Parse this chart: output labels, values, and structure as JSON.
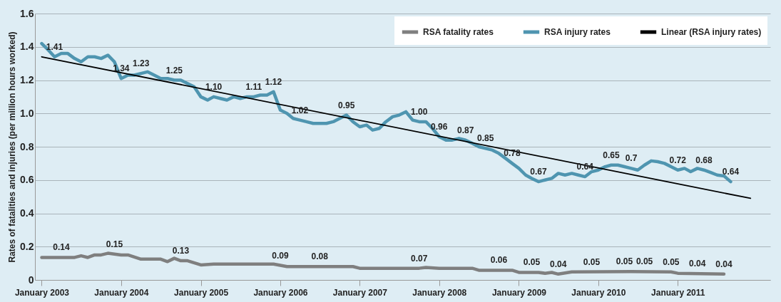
{
  "chart_data": {
    "type": "line",
    "ylabel": "Rates of fatalities and injuries (per million hours worked)",
    "xlim": [
      "2002-12",
      "2012-03"
    ],
    "xticks": [
      {
        "value": "2003-01",
        "label": "January 2003"
      },
      {
        "value": "2004-01",
        "label": "January 2004"
      },
      {
        "value": "2005-01",
        "label": "January 2005"
      },
      {
        "value": "2006-01",
        "label": "January 2006"
      },
      {
        "value": "2007-01",
        "label": "January 2007"
      },
      {
        "value": "2008-01",
        "label": "January 2008"
      },
      {
        "value": "2009-01",
        "label": "January 2009"
      },
      {
        "value": "2010-01",
        "label": "January 2010"
      },
      {
        "value": "2011-01",
        "label": "January 2011"
      }
    ],
    "ylim": [
      0,
      1.6
    ],
    "yticks": [
      0,
      0.2,
      0.4,
      0.6,
      0.8,
      {
        "value": 1,
        "label": "1.0"
      },
      1.2,
      1.4,
      1.6
    ],
    "grid": "y",
    "legend": "top right",
    "marker": "none",
    "line_style": "solid",
    "series": [
      {
        "name": "RSA fatality rates",
        "color": "#7f7f7f",
        "x": [
          "2003-01",
          "2003-06",
          "2003-07",
          "2003-08",
          "2003-09",
          "2003-10",
          "2003-11",
          "2004-01",
          "2004-02",
          "2004-04",
          "2004-07",
          "2004-08",
          "2004-09",
          "2004-10",
          "2004-11",
          "2005-01",
          "2005-03",
          "2005-12",
          "2006-02",
          "2006-12",
          "2007-01",
          "2007-10",
          "2007-11",
          "2008-01",
          "2008-06",
          "2008-07",
          "2008-12",
          "2009-01",
          "2009-04",
          "2009-05",
          "2009-06",
          "2009-07",
          "2009-09",
          "2010-06",
          "2010-12",
          "2011-01",
          "2011-08"
        ],
        "values": [
          0.135,
          0.135,
          0.145,
          0.135,
          0.15,
          0.15,
          0.16,
          0.15,
          0.15,
          0.125,
          0.125,
          0.11,
          0.13,
          0.115,
          0.115,
          0.09,
          0.095,
          0.095,
          0.08,
          0.08,
          0.07,
          0.07,
          0.075,
          0.07,
          0.07,
          0.058,
          0.058,
          0.045,
          0.045,
          0.04,
          0.045,
          0.035,
          0.048,
          0.05,
          0.048,
          0.04,
          0.035
        ]
      },
      {
        "name": "RSA injury rates",
        "color": "#4f95b0",
        "x": [
          "2003-01",
          "2003-02",
          "2003-03",
          "2003-04",
          "2003-05",
          "2003-06",
          "2003-07",
          "2003-08",
          "2003-09",
          "2003-10",
          "2003-11",
          "2003-12",
          "2004-01",
          "2004-02",
          "2004-03",
          "2004-04",
          "2004-05",
          "2004-06",
          "2004-07",
          "2004-08",
          "2004-09",
          "2004-10",
          "2004-11",
          "2004-12",
          "2005-01",
          "2005-02",
          "2005-03",
          "2005-04",
          "2005-05",
          "2005-06",
          "2005-07",
          "2005-08",
          "2005-09",
          "2005-10",
          "2005-11",
          "2005-12",
          "2006-01",
          "2006-02",
          "2006-03",
          "2006-04",
          "2006-05",
          "2006-06",
          "2006-07",
          "2006-08",
          "2006-09",
          "2006-10",
          "2006-11",
          "2006-12",
          "2007-01",
          "2007-02",
          "2007-03",
          "2007-04",
          "2007-05",
          "2007-06",
          "2007-07",
          "2007-08",
          "2007-09",
          "2007-10",
          "2007-11",
          "2007-12",
          "2008-01",
          "2008-02",
          "2008-03",
          "2008-04",
          "2008-05",
          "2008-06",
          "2008-07",
          "2008-08",
          "2008-09",
          "2008-10",
          "2008-11",
          "2008-12",
          "2009-01",
          "2009-02",
          "2009-03",
          "2009-04",
          "2009-05",
          "2009-06",
          "2009-07",
          "2009-08",
          "2009-09",
          "2009-10",
          "2009-11",
          "2009-12",
          "2010-01",
          "2010-02",
          "2010-03",
          "2010-04",
          "2010-05",
          "2010-06",
          "2010-07",
          "2010-08",
          "2010-09",
          "2010-10",
          "2010-11",
          "2010-12",
          "2011-01",
          "2011-02",
          "2011-03",
          "2011-04",
          "2011-05",
          "2011-06",
          "2011-07",
          "2011-08",
          "2011-09"
        ],
        "values": [
          1.42,
          1.38,
          1.34,
          1.36,
          1.36,
          1.33,
          1.31,
          1.34,
          1.34,
          1.33,
          1.35,
          1.31,
          1.21,
          1.23,
          1.23,
          1.24,
          1.25,
          1.23,
          1.21,
          1.21,
          1.2,
          1.2,
          1.18,
          1.16,
          1.1,
          1.08,
          1.1,
          1.09,
          1.08,
          1.1,
          1.09,
          1.1,
          1.1,
          1.11,
          1.11,
          1.13,
          1.02,
          1.0,
          0.97,
          0.96,
          0.95,
          0.94,
          0.94,
          0.94,
          0.95,
          0.97,
          0.99,
          0.95,
          0.92,
          0.93,
          0.9,
          0.91,
          0.95,
          0.98,
          0.99,
          1.01,
          0.96,
          0.95,
          0.95,
          0.91,
          0.86,
          0.84,
          0.84,
          0.85,
          0.84,
          0.82,
          0.8,
          0.79,
          0.78,
          0.76,
          0.73,
          0.7,
          0.67,
          0.63,
          0.61,
          0.59,
          0.6,
          0.61,
          0.64,
          0.63,
          0.64,
          0.63,
          0.62,
          0.65,
          0.66,
          0.68,
          0.69,
          0.69,
          0.68,
          0.67,
          0.66,
          0.69,
          0.715,
          0.71,
          0.7,
          0.68,
          0.66,
          0.67,
          0.65,
          0.67,
          0.66,
          0.645,
          0.63,
          0.625,
          0.59
        ]
      },
      {
        "name": "Linear (RSA injury rates)",
        "type": "line",
        "color": "#000000",
        "x": [
          "2003-01",
          "2011-12"
        ],
        "values": [
          1.34,
          0.49
        ]
      }
    ],
    "annotations": [
      {
        "text": "1.41",
        "x": "2003-03",
        "y": 1.34
      },
      {
        "text": "1.34",
        "x": "2004-01",
        "y": 1.21
      },
      {
        "text": "1.23",
        "x": "2004-04",
        "y": 1.24
      },
      {
        "text": "1.25",
        "x": "2004-09",
        "y": 1.2
      },
      {
        "text": "1.10",
        "x": "2005-03",
        "y": 1.1
      },
      {
        "text": "1.11",
        "x": "2005-09",
        "y": 1.1
      },
      {
        "text": "1.12",
        "x": "2005-12",
        "y": 1.13
      },
      {
        "text": "1.02",
        "x": "2006-04",
        "y": 0.96
      },
      {
        "text": "0.95",
        "x": "2006-11",
        "y": 0.99
      },
      {
        "text": "1.00",
        "x": "2007-10",
        "y": 0.95
      },
      {
        "text": "0.96",
        "x": "2008-01",
        "y": 0.86
      },
      {
        "text": "0.87",
        "x": "2008-05",
        "y": 0.84
      },
      {
        "text": "0.85",
        "x": "2008-08",
        "y": 0.79
      },
      {
        "text": "0.78",
        "x": "2008-12",
        "y": 0.7
      },
      {
        "text": "0.67",
        "x": "2009-04",
        "y": 0.59
      },
      {
        "text": "0.64",
        "x": "2009-11",
        "y": 0.62
      },
      {
        "text": "0.65",
        "x": "2010-03",
        "y": 0.69
      },
      {
        "text": "0.7",
        "x": "2010-06",
        "y": 0.67
      },
      {
        "text": "0.72",
        "x": "2011-01",
        "y": 0.66
      },
      {
        "text": "0.68",
        "x": "2011-05",
        "y": 0.66
      },
      {
        "text": "0.64",
        "x": "2011-09",
        "y": 0.59
      },
      {
        "text": "0.14",
        "x": "2003-04",
        "y": 0.135
      },
      {
        "text": "0.15",
        "x": "2003-12",
        "y": 0.155
      },
      {
        "text": "0.13",
        "x": "2004-10",
        "y": 0.115
      },
      {
        "text": "0.09",
        "x": "2006-01",
        "y": 0.085
      },
      {
        "text": "0.08",
        "x": "2006-07",
        "y": 0.08
      },
      {
        "text": "0.07",
        "x": "2007-10",
        "y": 0.07
      },
      {
        "text": "0.06",
        "x": "2008-10",
        "y": 0.058
      },
      {
        "text": "0.05",
        "x": "2009-03",
        "y": 0.045
      },
      {
        "text": "0.04",
        "x": "2009-07",
        "y": 0.035
      },
      {
        "text": "0.05",
        "x": "2009-12",
        "y": 0.048
      },
      {
        "text": "0.05",
        "x": "2010-05",
        "y": 0.05
      },
      {
        "text": "0.05",
        "x": "2010-08",
        "y": 0.05
      },
      {
        "text": "0.05",
        "x": "2010-12",
        "y": 0.048
      },
      {
        "text": "0.04",
        "x": "2011-04",
        "y": 0.04
      },
      {
        "text": "0.04",
        "x": "2011-08",
        "y": 0.035
      }
    ]
  }
}
